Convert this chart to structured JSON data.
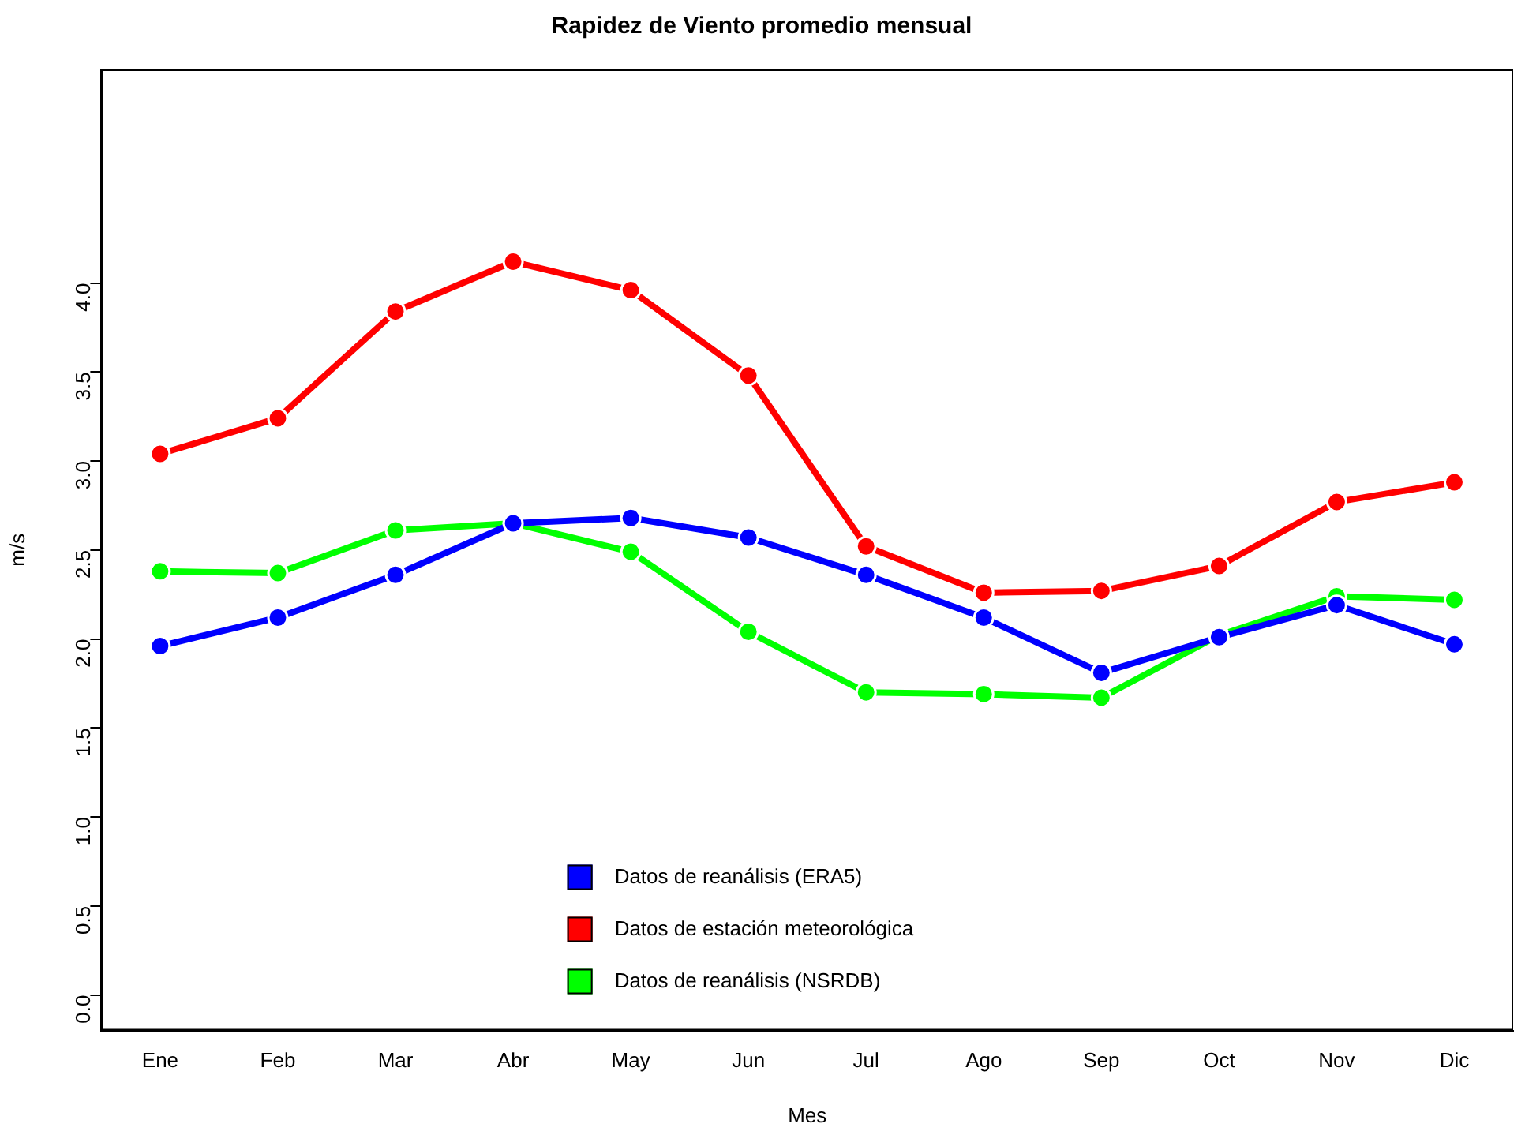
{
  "chart_data": {
    "type": "line",
    "title": "Rapidez de Viento promedio mensual",
    "xlabel": "Mes",
    "ylabel": "m/s",
    "categories": [
      "Ene",
      "Feb",
      "Mar",
      "Abr",
      "May",
      "Jun",
      "Jul",
      "Ago",
      "Sep",
      "Oct",
      "Nov",
      "Dic"
    ],
    "series": [
      {
        "name": "Datos de reanálisis (ERA5)",
        "color": "#0000ff",
        "values": [
          1.96,
          2.12,
          2.36,
          2.65,
          2.68,
          2.57,
          2.36,
          2.12,
          1.81,
          2.01,
          2.19,
          1.97
        ]
      },
      {
        "name": "Datos de estación meteorológica",
        "color": "#ff0000",
        "values": [
          3.04,
          3.24,
          3.84,
          4.12,
          3.96,
          3.48,
          2.52,
          2.26,
          2.27,
          2.41,
          2.77,
          2.88
        ]
      },
      {
        "name": "Datos de reanálisis (NSRDB)",
        "color": "#00ff00",
        "values": [
          2.38,
          2.37,
          2.61,
          2.65,
          2.49,
          2.04,
          1.7,
          1.69,
          1.67,
          2.02,
          2.24,
          2.22
        ]
      }
    ],
    "ylim": [
      -0.2,
      5.2
    ],
    "yticks": [
      {
        "value": 0,
        "label": "0.0"
      },
      {
        "value": 0.5,
        "label": "0.5"
      },
      {
        "value": 1,
        "label": "1.0"
      },
      {
        "value": 1.5,
        "label": "1.5"
      },
      {
        "value": 2,
        "label": "2.0"
      },
      {
        "value": 2.5,
        "label": "2.5"
      },
      {
        "value": 3,
        "label": "3.0"
      },
      {
        "value": 3.5,
        "label": "3.5"
      },
      {
        "value": 4,
        "label": "4.0"
      }
    ],
    "grid": false,
    "legend": "bottom",
    "marker": "circle",
    "line_style": "solid"
  }
}
